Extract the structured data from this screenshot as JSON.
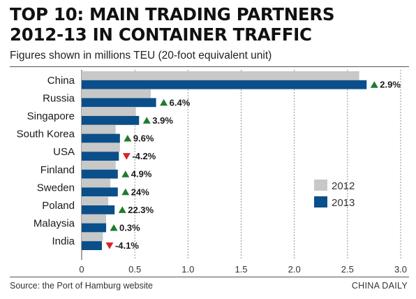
{
  "header": {
    "title_line1": "TOP 10: MAIN TRADING PARTNERS",
    "title_line2": "2012-13 IN CONTAINER TRAFFIC",
    "subtitle": "Figures shown in millions TEU (20-foot equivalent unit)"
  },
  "footer": {
    "source": "Source: the Port of Hamburg website",
    "credit": "CHINA DAILY"
  },
  "chart_data": {
    "type": "bar",
    "orientation": "horizontal",
    "categories": [
      "China",
      "Russia",
      "Singapore",
      "South Korea",
      "USA",
      "Finland",
      "Sweden",
      "Poland",
      "Malaysia",
      "India"
    ],
    "series": [
      {
        "name": "2012",
        "color": "#c8c8c8",
        "values": [
          2.61,
          0.65,
          0.51,
          0.32,
          0.36,
          0.32,
          0.27,
          0.25,
          0.23,
          0.2
        ]
      },
      {
        "name": "2013",
        "color": "#0b4f8a",
        "values": [
          2.68,
          0.7,
          0.54,
          0.36,
          0.35,
          0.34,
          0.34,
          0.31,
          0.23,
          0.19
        ]
      }
    ],
    "changes": [
      "2.9%",
      "6.4%",
      "3.9%",
      "9.6%",
      "-4.2%",
      "4.9%",
      "24%",
      "22.3%",
      "0.3%",
      "-4.1%"
    ],
    "change_direction": [
      "up",
      "up",
      "up",
      "up",
      "down",
      "up",
      "up",
      "up",
      "up",
      "down"
    ],
    "up_color": "#1f7a2e",
    "down_color": "#d6222a",
    "x_ticks": [
      "0",
      "0.5",
      "1.0",
      "1.5",
      "2.0",
      "2.5",
      "3.0"
    ],
    "xlim": [
      0,
      3.0
    ],
    "grid": "vertical dashed",
    "legend_position": "right-middle"
  }
}
